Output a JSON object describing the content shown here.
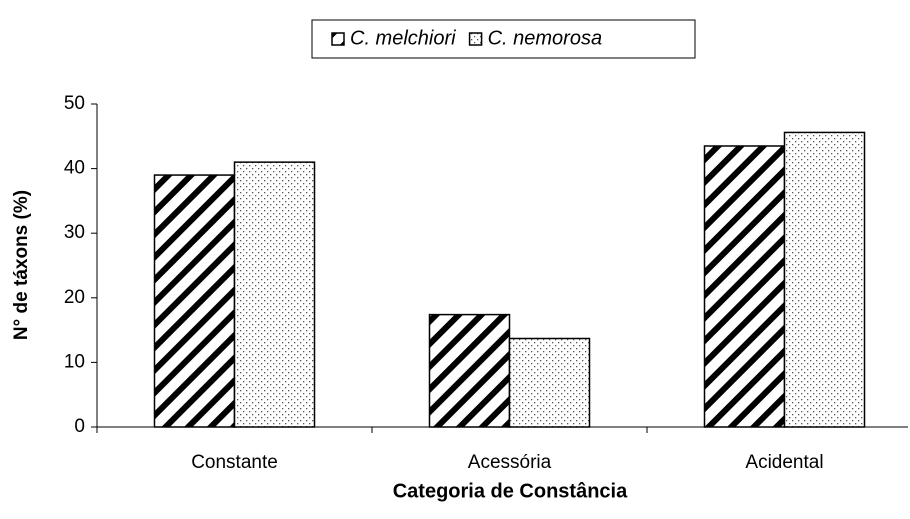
{
  "chart_data": {
    "type": "bar",
    "xlabel": "Categoria de Constância",
    "ylabel": "N° de táxons (%)",
    "categories": [
      "Constante",
      "Acessória",
      "Acidental"
    ],
    "series": [
      {
        "name": "C. melchiori",
        "pattern": "hatch",
        "color": "#000000",
        "values": [
          39,
          17.4,
          43.5
        ]
      },
      {
        "name": "C. nemorosa",
        "pattern": "dots",
        "color": "#000000",
        "values": [
          41,
          13.7,
          45.6
        ]
      }
    ],
    "ylim": [
      0,
      50
    ],
    "yticks": [
      0,
      10,
      20,
      30,
      40,
      50
    ],
    "legend": "top"
  }
}
